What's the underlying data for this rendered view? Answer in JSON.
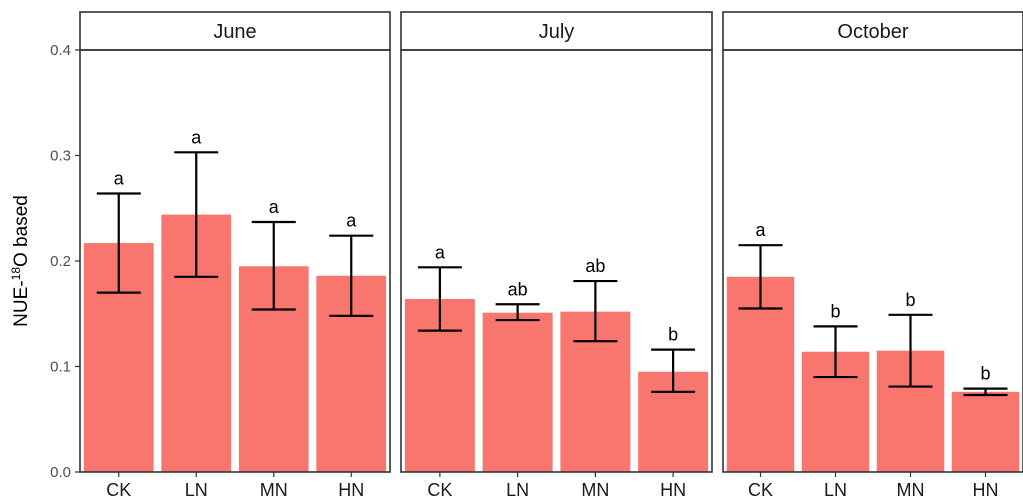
{
  "chart_data": {
    "type": "bar",
    "ylabel_main": "NUE-",
    "ylabel_sup": "18",
    "ylabel_rest": "O based",
    "ylim": [
      0,
      0.4
    ],
    "yticks": [
      "0.0",
      "0.1",
      "0.2",
      "0.3",
      "0.4"
    ],
    "ytick_values": [
      0.0,
      0.1,
      0.2,
      0.3,
      0.4
    ],
    "categories": [
      "CK",
      "LN",
      "MN",
      "HN"
    ],
    "grid": false,
    "bar_color": "#F8766D",
    "panels": [
      {
        "title": "June",
        "values": [
          0.217,
          0.244,
          0.195,
          0.186
        ],
        "err_low": [
          0.17,
          0.185,
          0.154,
          0.148
        ],
        "err_high": [
          0.264,
          0.303,
          0.237,
          0.224
        ],
        "letters": [
          "a",
          "a",
          "a",
          "a"
        ]
      },
      {
        "title": "July",
        "values": [
          0.164,
          0.151,
          0.152,
          0.095
        ],
        "err_low": [
          0.134,
          0.144,
          0.124,
          0.076
        ],
        "err_high": [
          0.194,
          0.159,
          0.181,
          0.116
        ],
        "letters": [
          "a",
          "ab",
          "ab",
          "b"
        ]
      },
      {
        "title": "October",
        "values": [
          0.185,
          0.114,
          0.115,
          0.076
        ],
        "err_low": [
          0.155,
          0.09,
          0.081,
          0.073
        ],
        "err_high": [
          0.215,
          0.138,
          0.149,
          0.079
        ],
        "letters": [
          "a",
          "b",
          "b",
          "b"
        ]
      }
    ]
  }
}
